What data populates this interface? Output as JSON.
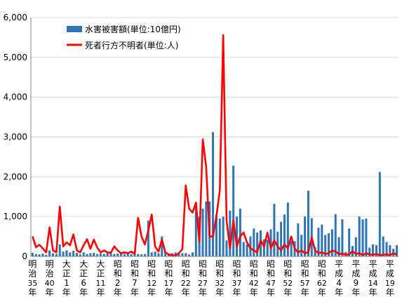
{
  "chart_data": {
    "type": "bar",
    "x_tick_labels": [
      "明治35年",
      "明治40年",
      "大正1年",
      "大正6年",
      "大正11年",
      "昭和2年",
      "昭和7年",
      "昭和12年",
      "昭和17年",
      "昭和22年",
      "昭和27年",
      "昭和32年",
      "昭和37年",
      "昭和42年",
      "昭和47年",
      "昭和52年",
      "昭和57年",
      "昭和62年",
      "平成4年",
      "平成9年",
      "平成14年",
      "平成19年"
    ],
    "ylim": [
      0,
      6000
    ],
    "y_ticks": [
      0,
      1000,
      2000,
      3000,
      4000,
      5000,
      6000
    ],
    "y_tick_labels": [
      "0",
      "1,000",
      "2,000",
      "3,000",
      "4,000",
      "5,000",
      "6,000"
    ],
    "grid": true,
    "legend_position": "top-left",
    "series": [
      {
        "name": "水害被害額(単位:10億円)",
        "type": "bar",
        "color": "#2E75B6",
        "values": [
          90,
          60,
          50,
          70,
          40,
          150,
          80,
          60,
          300,
          120,
          150,
          100,
          140,
          90,
          50,
          100,
          60,
          80,
          90,
          60,
          70,
          60,
          80,
          100,
          60,
          70,
          80,
          60,
          70,
          60,
          100,
          60,
          50,
          60,
          900,
          100,
          120,
          80,
          500,
          100,
          60,
          80,
          100,
          60,
          80,
          80,
          50,
          100,
          1350,
          1000,
          1200,
          1380,
          1380,
          3120,
          1050,
          950,
          1000,
          400,
          1150,
          2280,
          1000,
          1200,
          360,
          300,
          500,
          700,
          600,
          650,
          430,
          420,
          680,
          1320,
          620,
          870,
          1050,
          1350,
          380,
          380,
          830,
          540,
          1000,
          1650,
          960,
          230,
          720,
          800,
          540,
          580,
          680,
          1060,
          480,
          930,
          110,
          700,
          260,
          480,
          1000,
          930,
          950,
          220,
          300,
          280,
          2120,
          500,
          360,
          280,
          190,
          280
        ]
      },
      {
        "name": "死者行方不明者(単位:人)",
        "type": "line",
        "color": "#FF0000",
        "values": [
          500,
          230,
          290,
          200,
          100,
          730,
          150,
          100,
          1250,
          250,
          350,
          280,
          550,
          150,
          100,
          280,
          430,
          190,
          420,
          220,
          100,
          150,
          100,
          90,
          250,
          150,
          80,
          100,
          80,
          120,
          60,
          970,
          500,
          300,
          650,
          1050,
          250,
          120,
          420,
          100,
          50,
          30,
          20,
          80,
          180,
          1780,
          1200,
          1100,
          1350,
          360,
          2940,
          2250,
          500,
          500,
          1000,
          1650,
          5560,
          900,
          200,
          900,
          250,
          500,
          600,
          350,
          200,
          150,
          100,
          400,
          250,
          600,
          200,
          400,
          250,
          150,
          300,
          200,
          500,
          200,
          100,
          150,
          80,
          100,
          480,
          150,
          80,
          100,
          60,
          80,
          150,
          120,
          60,
          70,
          40,
          50,
          130,
          60,
          80,
          30,
          80,
          50,
          40,
          60,
          30,
          40,
          50,
          30,
          80,
          40
        ]
      }
    ]
  }
}
